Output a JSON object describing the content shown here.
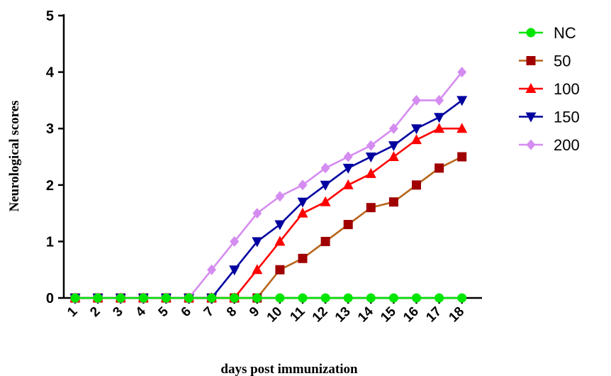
{
  "chart_data": {
    "type": "line",
    "xlabel": "days post immunization",
    "ylabel": "Neurological scores",
    "categories": [
      "1",
      "2",
      "3",
      "4",
      "5",
      "6",
      "7",
      "8",
      "9",
      "10",
      "11",
      "12",
      "13",
      "14",
      "15",
      "16",
      "17",
      "18"
    ],
    "ylim": [
      0,
      5
    ],
    "yticks": [
      "0",
      "1",
      "2",
      "3",
      "4",
      "5"
    ],
    "grid": false,
    "legend_position": "right",
    "series": [
      {
        "name": "NC",
        "color": "#00e600",
        "marker": "circle",
        "values": [
          0,
          0,
          0,
          0,
          0,
          0,
          0,
          0,
          0,
          0,
          0,
          0,
          0,
          0,
          0,
          0,
          0,
          0
        ]
      },
      {
        "name": "50",
        "color": "#b8651a",
        "marker_color": "#a00000",
        "marker": "square",
        "values": [
          0,
          0,
          0,
          0,
          0,
          0,
          0,
          0,
          0,
          0.5,
          0.7,
          1.0,
          1.3,
          1.6,
          1.7,
          2.0,
          2.3,
          2.5
        ]
      },
      {
        "name": "100",
        "color": "#ff0000",
        "marker": "triangle-up",
        "values": [
          0,
          0,
          0,
          0,
          0,
          0,
          0,
          0,
          0.5,
          1.0,
          1.5,
          1.7,
          2.0,
          2.2,
          2.5,
          2.8,
          3.0,
          3.0
        ]
      },
      {
        "name": "150",
        "color": "#0000a0",
        "marker": "triangle-down",
        "values": [
          0,
          0,
          0,
          0,
          0,
          0,
          0,
          0.5,
          1.0,
          1.3,
          1.7,
          2.0,
          2.3,
          2.5,
          2.7,
          3.0,
          3.2,
          3.5
        ]
      },
      {
        "name": "200",
        "color": "#d58cf0",
        "marker": "diamond",
        "values": [
          0,
          0,
          0,
          0,
          0,
          0,
          0.5,
          1.0,
          1.5,
          1.8,
          2.0,
          2.3,
          2.5,
          2.7,
          3.0,
          3.5,
          3.5,
          4.0
        ]
      }
    ]
  }
}
